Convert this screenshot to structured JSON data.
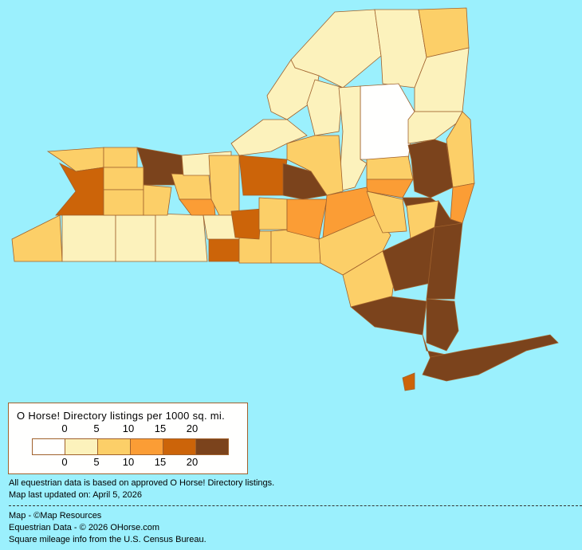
{
  "legend": {
    "title": "O Horse! Directory listings per 1000 sq. mi.",
    "top_ticks": [
      "0",
      "5",
      "10",
      "15",
      "20"
    ],
    "bottom_ticks": [
      "0",
      "5",
      "10",
      "15",
      "20"
    ],
    "bins": [
      {
        "range": "0",
        "color": "#fffffe"
      },
      {
        "range": "0-5",
        "color": "#fcf2bc"
      },
      {
        "range": "5-10",
        "color": "#fccf68"
      },
      {
        "range": "10-15",
        "color": "#fb9d35"
      },
      {
        "range": "15-20",
        "color": "#cc6409"
      },
      {
        "range": "20+",
        "color": "#7b431c"
      }
    ]
  },
  "background_color": "#9bf0fd",
  "border_color": "#a0612c",
  "notes": {
    "line1": "All equestrian data is based on approved O Horse! Directory listings.",
    "line2": "Map last updated on: April 5, 2026"
  },
  "credits": {
    "map": "Map - ©Map Resources",
    "data": "Equestrian Data - © 2026 OHorse.com",
    "census": "Square mileage info from the U.S. Census Bureau."
  }
}
